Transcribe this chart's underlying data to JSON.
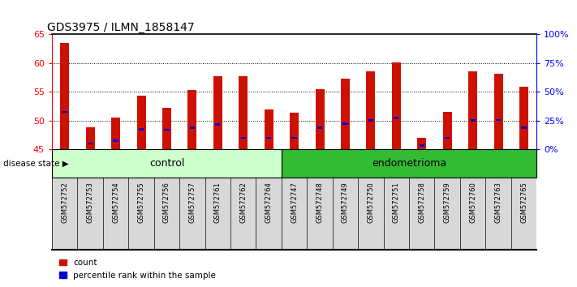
{
  "title": "GDS3975 / ILMN_1858147",
  "samples": [
    "GSM572752",
    "GSM572753",
    "GSM572754",
    "GSM572755",
    "GSM572756",
    "GSM572757",
    "GSM572761",
    "GSM572762",
    "GSM572764",
    "GSM572747",
    "GSM572748",
    "GSM572749",
    "GSM572750",
    "GSM572751",
    "GSM572758",
    "GSM572759",
    "GSM572760",
    "GSM572763",
    "GSM572765"
  ],
  "counts": [
    63.5,
    48.8,
    50.5,
    54.3,
    52.2,
    55.3,
    57.7,
    57.7,
    51.9,
    51.4,
    55.4,
    57.3,
    58.6,
    60.1,
    47.0,
    51.5,
    58.6,
    58.2,
    55.9
  ],
  "percentiles": [
    51.5,
    46.0,
    46.5,
    48.5,
    48.4,
    48.7,
    49.3,
    47.0,
    47.0,
    47.0,
    48.8,
    49.5,
    50.0,
    50.4,
    45.7,
    47.0,
    50.0,
    50.1,
    48.8
  ],
  "group": [
    "control",
    "control",
    "control",
    "control",
    "control",
    "control",
    "control",
    "control",
    "control",
    "endometrioma",
    "endometrioma",
    "endometrioma",
    "endometrioma",
    "endometrioma",
    "endometrioma",
    "endometrioma",
    "endometrioma",
    "endometrioma",
    "endometrioma"
  ],
  "ylim_left": [
    45,
    65
  ],
  "ylim_right": [
    0,
    100
  ],
  "yticks_left": [
    45,
    50,
    55,
    60,
    65
  ],
  "yticks_right": [
    0,
    25,
    50,
    75,
    100
  ],
  "ytick_labels_right": [
    "0%",
    "25%",
    "50%",
    "75%",
    "100%"
  ],
  "bar_color": "#cc1100",
  "blue_color": "#0000cc",
  "control_color_light": "#ccffcc",
  "control_color_dark": "#44cc44",
  "endometrioma_color": "#33bb33",
  "title_fontsize": 10,
  "baseline": 45,
  "bar_width": 0.35,
  "blue_bar_width": 0.2,
  "blue_bar_height": 0.4
}
